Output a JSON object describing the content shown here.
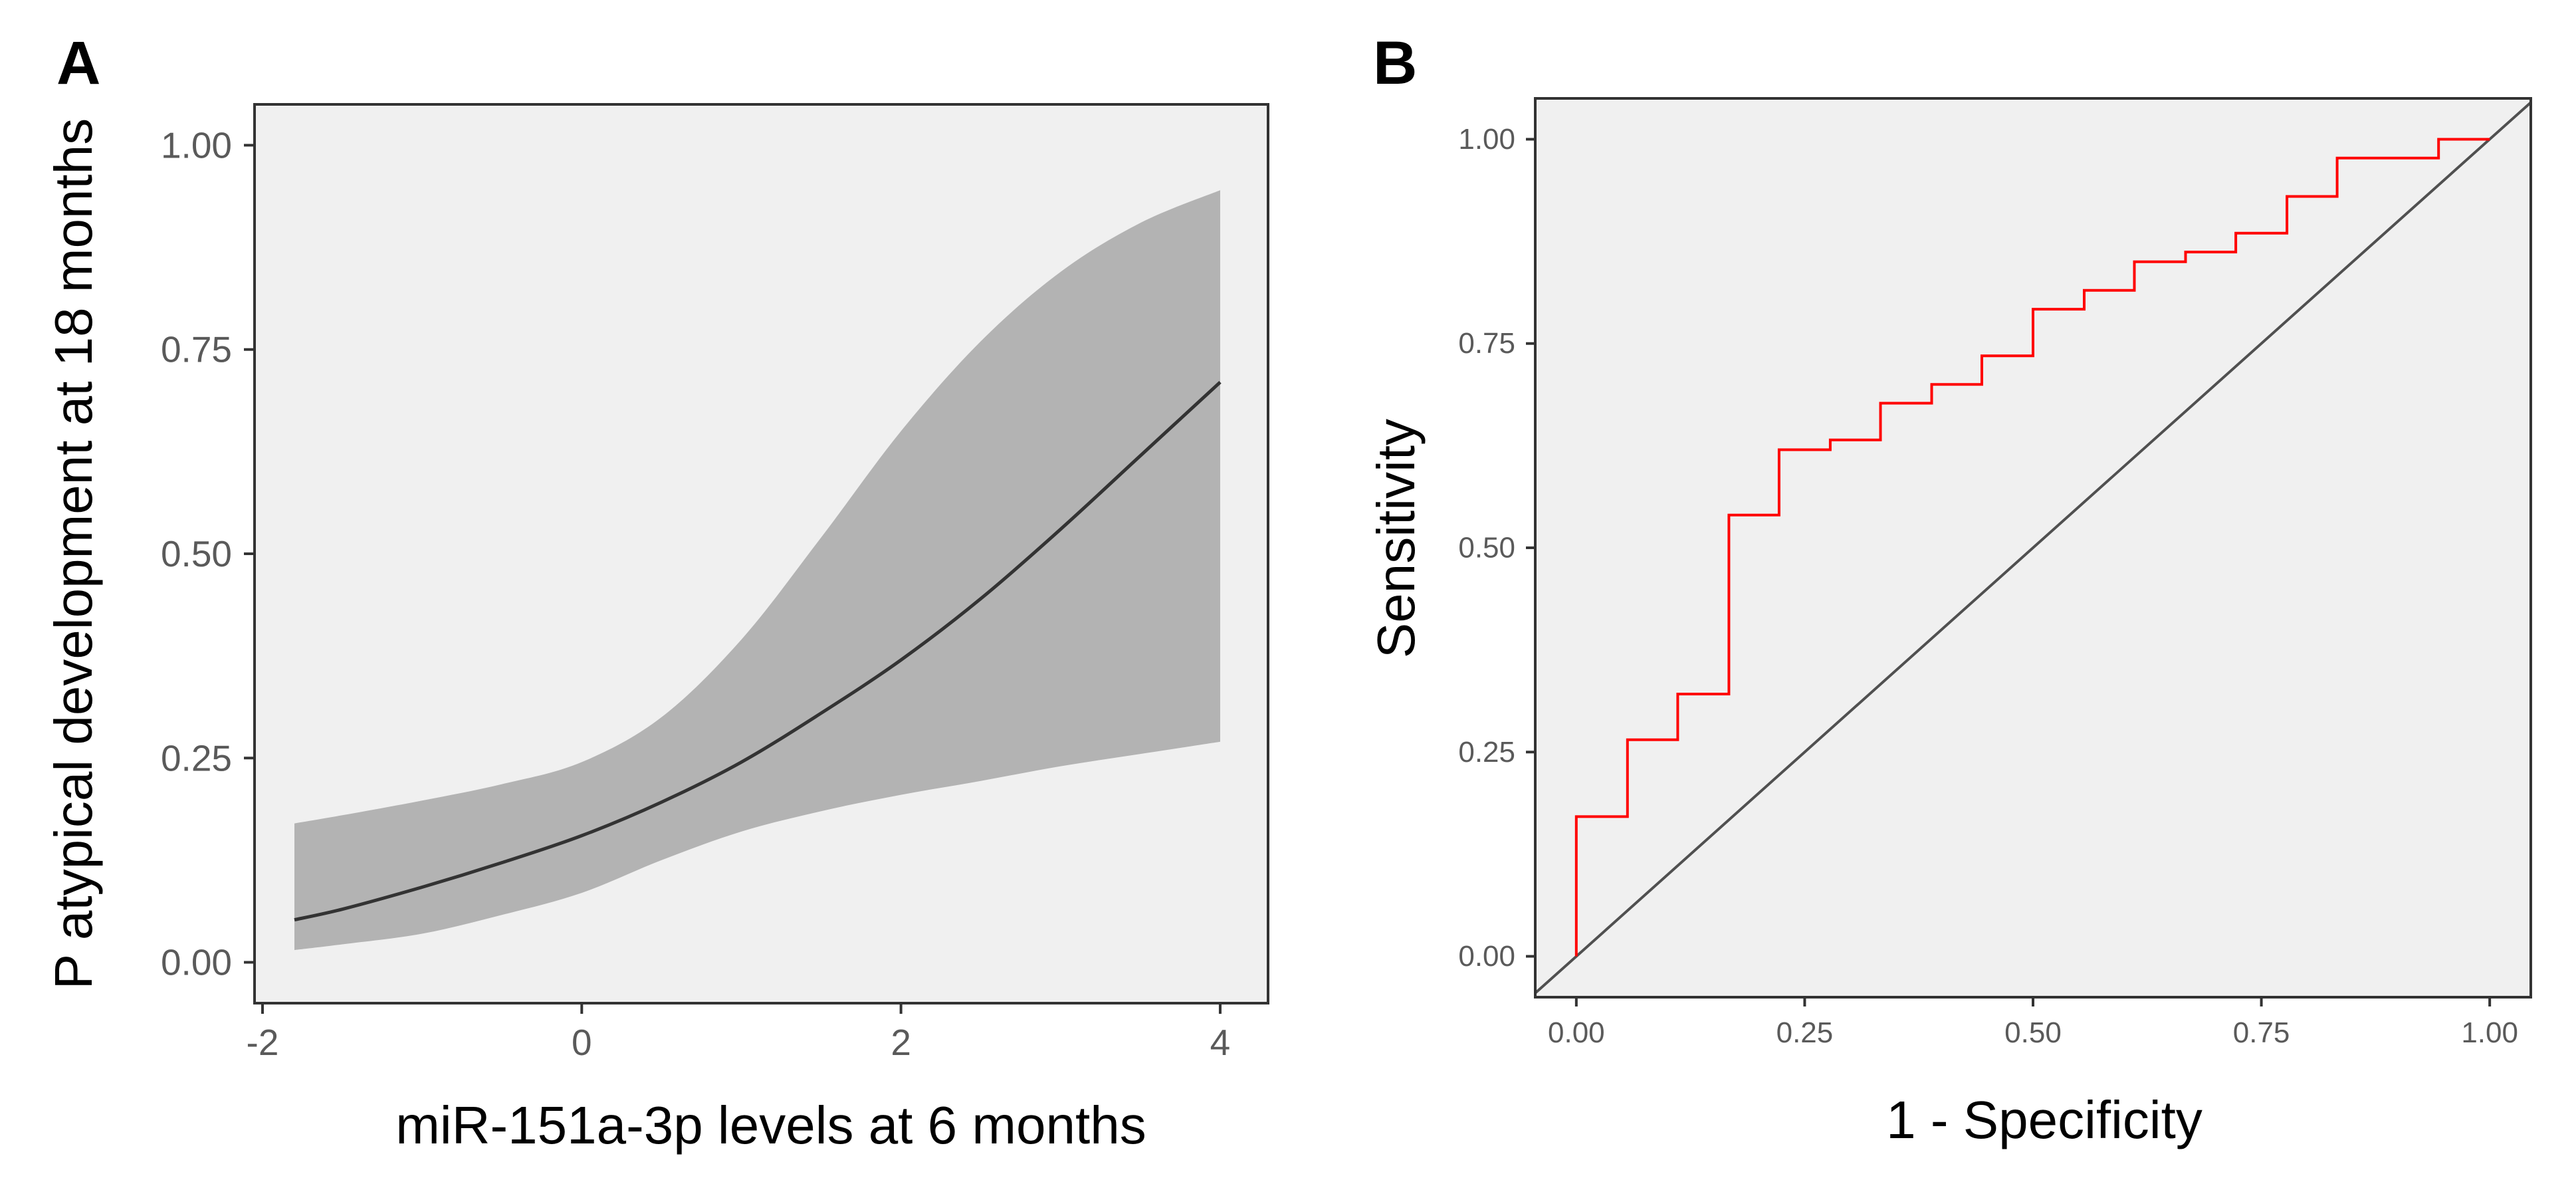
{
  "chart_data": [
    {
      "panel": "A",
      "type": "line",
      "title": "",
      "xlabel": "miR-151a-3p levels at 6 months",
      "ylabel": "P atypical development at 18 months",
      "xlim": [
        -2.05,
        4.3
      ],
      "ylim": [
        -0.05,
        1.05
      ],
      "x_ticks": [
        -2,
        0,
        2,
        4
      ],
      "x_tick_labels": [
        "-2",
        "0",
        "2",
        "4"
      ],
      "y_ticks": [
        0,
        0.25,
        0.5,
        0.75,
        1
      ],
      "y_tick_labels": [
        "0.00",
        "0.25",
        "0.50",
        "0.75",
        "1.00"
      ],
      "grid": false,
      "background": "#f0f0f0",
      "series": [
        {
          "kind": "fitted-line",
          "color": "#333333",
          "x": [
            -1.8,
            -1.5,
            -1.0,
            -0.5,
            0.0,
            0.5,
            1.0,
            1.5,
            2.0,
            2.5,
            3.0,
            3.5,
            4.0
          ],
          "values": [
            0.052,
            0.065,
            0.092,
            0.122,
            0.155,
            0.196,
            0.245,
            0.305,
            0.37,
            0.445,
            0.53,
            0.62,
            0.71
          ]
        },
        {
          "kind": "confidence-band",
          "color": "#b3b3b3",
          "x": [
            -1.8,
            -1.5,
            -1.0,
            -0.5,
            0.0,
            0.5,
            1.0,
            1.5,
            2.0,
            2.5,
            3.0,
            3.5,
            4.0
          ],
          "lower": [
            0.015,
            0.022,
            0.035,
            0.058,
            0.085,
            0.125,
            0.16,
            0.185,
            0.205,
            0.222,
            0.24,
            0.255,
            0.27
          ],
          "upper": [
            0.17,
            0.18,
            0.198,
            0.218,
            0.245,
            0.3,
            0.395,
            0.52,
            0.65,
            0.76,
            0.845,
            0.905,
            0.945
          ]
        }
      ]
    },
    {
      "panel": "B",
      "type": "line",
      "title": "",
      "xlabel": "1 - Specificity",
      "ylabel": "Sensitivity",
      "xlim": [
        -0.045,
        1.045
      ],
      "ylim": [
        -0.05,
        1.05
      ],
      "x_ticks": [
        0,
        0.25,
        0.5,
        0.75,
        1
      ],
      "x_tick_labels": [
        "0.00",
        "0.25",
        "0.50",
        "0.75",
        "1.00"
      ],
      "y_ticks": [
        0,
        0.25,
        0.5,
        0.75,
        1
      ],
      "y_tick_labels": [
        "0.00",
        "0.25",
        "0.50",
        "0.75",
        "1.00"
      ],
      "grid": false,
      "background": "#f0f0f0",
      "series": [
        {
          "kind": "roc-step",
          "color": "#ff0000",
          "x": [
            0,
            0,
            0.056,
            0.056,
            0.111,
            0.111,
            0.167,
            0.167,
            0.222,
            0.222,
            0.278,
            0.278,
            0.333,
            0.333,
            0.389,
            0.389,
            0.444,
            0.444,
            0.5,
            0.5,
            0.556,
            0.556,
            0.611,
            0.611,
            0.667,
            0.667,
            0.722,
            0.722,
            0.778,
            0.778,
            0.833,
            0.833,
            0.944,
            0.944,
            1.0
          ],
          "values": [
            0,
            0.171,
            0.171,
            0.265,
            0.265,
            0.321,
            0.321,
            0.54,
            0.54,
            0.62,
            0.62,
            0.632,
            0.632,
            0.677,
            0.677,
            0.7,
            0.7,
            0.735,
            0.735,
            0.792,
            0.792,
            0.815,
            0.815,
            0.85,
            0.85,
            0.862,
            0.862,
            0.885,
            0.885,
            0.93,
            0.93,
            0.977,
            0.977,
            1.0,
            1.0
          ]
        },
        {
          "kind": "reference-diagonal",
          "color": "#505050",
          "x": [
            -0.045,
            1.045
          ],
          "values": [
            -0.045,
            1.045
          ]
        }
      ]
    }
  ]
}
